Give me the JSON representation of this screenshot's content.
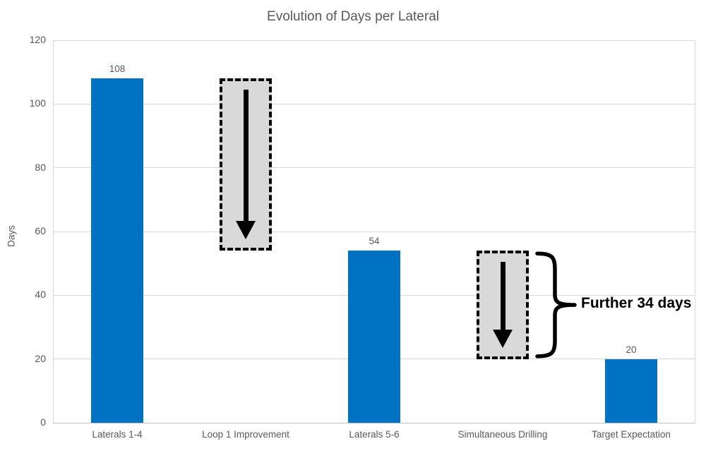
{
  "chart_data": {
    "type": "bar",
    "title": "Evolution of Days per Lateral",
    "ylabel": "Days",
    "xlabel": "",
    "ylim": [
      0,
      120
    ],
    "yticks": [
      0,
      20,
      40,
      60,
      80,
      100,
      120
    ],
    "grid": true,
    "legend": false,
    "categories": [
      "Laterals 1-4",
      "Loop 1 Improvement",
      "Laterals 5-6",
      "Simultaneous Drilling",
      "Target Expectation"
    ],
    "bars": [
      {
        "category_index": 0,
        "category": "Laterals 1-4",
        "value": 108,
        "label": "108"
      },
      {
        "category_index": 2,
        "category": "Laterals 5-6",
        "value": 54,
        "label": "54"
      },
      {
        "category_index": 4,
        "category": "Target Expectation",
        "value": 20,
        "label": "20"
      }
    ],
    "drop_boxes": [
      {
        "category_index": 1,
        "category": "Loop 1 Improvement",
        "from": 108,
        "to": 54
      },
      {
        "category_index": 3,
        "category": "Simultaneous Drilling",
        "from": 54,
        "to": 20
      }
    ],
    "annotation": {
      "text": "Further 34 days",
      "brace_from": 54,
      "brace_to": 20,
      "category_index": 3
    },
    "colors": {
      "bar": "#0072C4",
      "box_fill": "#D9D9D9",
      "box_border": "#000000",
      "arrow": "#000000",
      "grid": "#D9D9D9",
      "axis_line": "#BFBFBF",
      "text": "#595959",
      "annotation": "#000000"
    }
  }
}
